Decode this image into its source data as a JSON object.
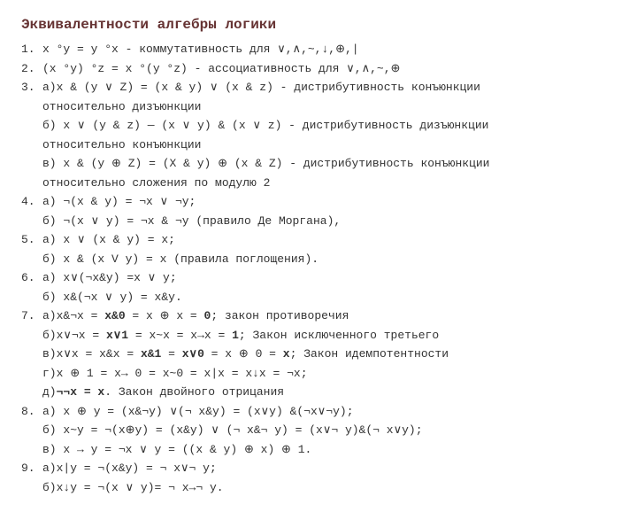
{
  "title": "Эквивалентности алгебры логики",
  "colors": {
    "title": "#663333",
    "text": "#333333",
    "background": "#ffffff"
  },
  "typography": {
    "title_fontsize": 16,
    "body_fontsize": 13,
    "font_family": "Courier New, monospace"
  },
  "items": {
    "n1": "1.",
    "t1": "x °y = y °x   - коммутативность для ∨,∧,~,↓,⊕,|",
    "n2": "2.",
    "t2": "(x °y) °z = x °(y °z) - ассоциативность для ∨,∧,~,⊕",
    "n3": "3.",
    "t3a": "а)x & (y ∨ Z) = (x & y) ∨ (x & z) - дистрибутивность конъюнкции",
    "t3a2": "относительно дизъюнкции",
    "t3b": "б) x ∨ (y & z) — (x ∨ y) & (x ∨ z) - дистрибутивность  дизъюнкции",
    "t3b2": "относительно конъюнкции",
    "t3v": "в) x & (y ⊕ Z) = (X & y) ⊕ (x & Z) - дистрибутивность конъюнкции",
    "t3v2": "относительно сложения по модулю 2",
    "n4": "4.",
    "t4a": "a) ¬(x & y) = ¬x ∨ ¬y;",
    "t4b": "б) ¬(x ∨ y) = ¬x & ¬y  (правило Де Моргана),",
    "n5": "5.",
    "t5a": "a) x ∨ (x & y) = x;",
    "t5b": "б) x & (x V y) = x  (правила поглощения).",
    "n6": "6.",
    "t6a": "a) x∨(¬x&y) =x ∨ y;",
    "t6b": "б) x&(¬x ∨ y) = x&y.",
    "n7": "7.",
    "t7a_p1": "а)x&¬x = ",
    "t7a_b1": "x&0",
    "t7a_p2": " = x ⊕ x = ",
    "t7a_b2": "0",
    "t7a_p3": "; закон противоречия",
    "t7b_p1": "б)x∨¬x = ",
    "t7b_b1": "x∨1",
    "t7b_p2": " = x~x = x→x = ",
    "t7b_b2": "1",
    "t7b_p3": "; Закон исключенного третьего",
    "t7v_p1": "в)x∨x = x&x = ",
    "t7v_b1": "x&1",
    "t7v_p2": " = ",
    "t7v_b2": "x∨0",
    "t7v_p3": " = x ⊕ 0 = ",
    "t7v_b3": "x",
    "t7v_p4": "; Закон идемпотентности",
    "t7g": "г)x ⊕ 1 = x→ 0 = x~0 = x|x = x↓x = ¬x;",
    "t7d_p1": "д)",
    "t7d_b1": "¬¬x = x",
    "t7d_p2": ". Закон двойного отрицания",
    "n8": "8.",
    "t8a": "a) x ⊕ y = (x&¬y) ∨(¬ x&y) = (x∨y) &(¬x∨¬y);",
    "t8b": "б) x~y = ¬(x⊕y) = (x&y) ∨ (¬ x&¬ y) = (x∨¬ y)&(¬ x∨y);",
    "t8v": "в) x → y = ¬x ∨ y = ((x & y) ⊕ x) ⊕ 1.",
    "n9": "9.",
    "t9a": "а)x|y = ¬(x&y) = ¬ x∨¬ y;",
    "t9b": "б)x↓y = ¬(x ∨ y)= ¬ x→¬ y."
  }
}
